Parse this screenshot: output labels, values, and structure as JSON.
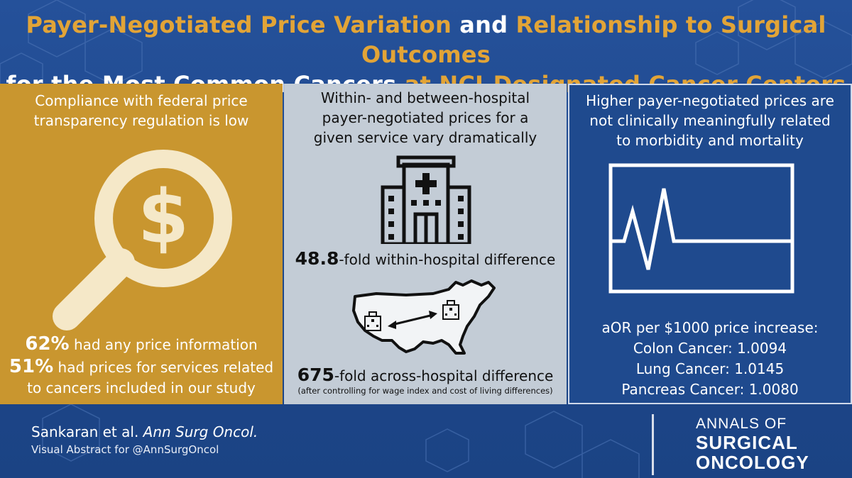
{
  "title": {
    "line1_gold_a": "Payer-Negotiated Price Variation",
    "line1_white": " and ",
    "line1_gold_b": "Relationship to Surgical Outcomes",
    "line2_white": "for the Most Common Cancers",
    "line2_gold": " at NCI-Designated Cancer Centers"
  },
  "panel1": {
    "heading": "Compliance with federal price transparency regulation is low",
    "stat1_value": "62%",
    "stat1_text": " had any price information",
    "stat2_value": "51%",
    "stat2_text": " had prices for services related",
    "stat2_text2": "to cancers included in our study",
    "icon": "magnifier-dollar-icon",
    "color": "#c9962f"
  },
  "panel2": {
    "heading": "Within- and between-hospital payer-negotiated prices for a given service vary dramatically",
    "within_value": "48.8",
    "within_text": "-fold within-hospital difference",
    "across_value": "675",
    "across_text": "-fold across-hospital difference",
    "note": "(after controlling for wage index and cost of living differences)",
    "icons": [
      "hospital-icon",
      "us-map-icon"
    ],
    "color": "#c3ccd6"
  },
  "panel3": {
    "heading": "Higher payer-negotiated prices are not clinically meaningfully related to morbidity and mortality",
    "aor_heading": "aOR per $1000 price increase:",
    "aor_lines": [
      "Colon Cancer: 1.0094",
      "Lung Cancer: 1.0145",
      "Pancreas Cancer: 1.0080"
    ],
    "icon": "heart-monitor-icon",
    "color": "#1f4a8e"
  },
  "footer": {
    "citation_authors": "Sankaran et al. ",
    "citation_journal": "Ann Surg Oncol.",
    "visual_abstract": "Visual Abstract for @AnnSurgOncol",
    "journal_line1": "ANNALS OF",
    "journal_line2": "SURGICAL",
    "journal_line3": "ONCOLOGY"
  }
}
